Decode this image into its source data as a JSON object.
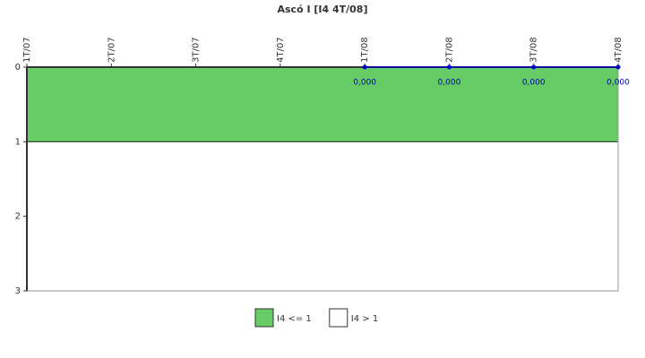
{
  "chart_data": {
    "type": "line",
    "title": "Ascó I [I4 4T/08]",
    "categories": [
      "1T/07",
      "2T/07",
      "3T/07",
      "4T/07",
      "1T/08",
      "2T/08",
      "3T/08",
      "4T/08"
    ],
    "series": [
      {
        "color": "#0000cc",
        "values": [
          null,
          null,
          null,
          null,
          0,
          0,
          0,
          0
        ],
        "value_labels": [
          null,
          null,
          null,
          null,
          "0,000",
          "0,000",
          "0,000",
          "0,000"
        ]
      }
    ],
    "bands": [
      {
        "label": "I4 <= 1",
        "from": 0,
        "to": 1,
        "color": "#66cc66"
      },
      {
        "label": "I4 > 1",
        "from": 1,
        "to": 3,
        "color": "#ffffff"
      }
    ],
    "ylim": [
      0,
      3
    ],
    "yticks": [
      0,
      1,
      2,
      3
    ],
    "y_inverted": true
  }
}
